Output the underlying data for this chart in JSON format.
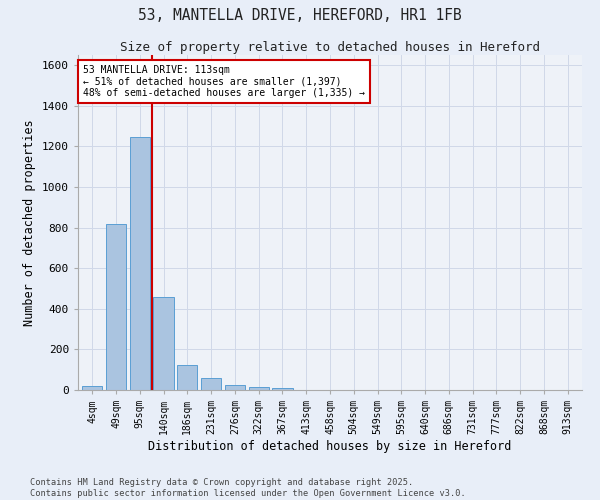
{
  "title1": "53, MANTELLA DRIVE, HEREFORD, HR1 1FB",
  "title2": "Size of property relative to detached houses in Hereford",
  "xlabel": "Distribution of detached houses by size in Hereford",
  "ylabel": "Number of detached properties",
  "categories": [
    "4sqm",
    "49sqm",
    "95sqm",
    "140sqm",
    "186sqm",
    "231sqm",
    "276sqm",
    "322sqm",
    "367sqm",
    "413sqm",
    "458sqm",
    "504sqm",
    "549sqm",
    "595sqm",
    "640sqm",
    "686sqm",
    "731sqm",
    "777sqm",
    "822sqm",
    "868sqm",
    "913sqm"
  ],
  "values": [
    22,
    820,
    1245,
    460,
    125,
    58,
    25,
    15,
    8,
    0,
    0,
    0,
    0,
    0,
    0,
    0,
    0,
    0,
    0,
    0,
    0
  ],
  "bar_color": "#aac4e0",
  "bar_edge_color": "#5a9fd4",
  "vline_x": 2.5,
  "vline_color": "#cc0000",
  "annotation_text": "53 MANTELLA DRIVE: 113sqm\n← 51% of detached houses are smaller (1,397)\n48% of semi-detached houses are larger (1,335) →",
  "annotation_box_color": "#cc0000",
  "annotation_bg_color": "#ffffff",
  "ylim": [
    0,
    1650
  ],
  "yticks": [
    0,
    200,
    400,
    600,
    800,
    1000,
    1200,
    1400,
    1600
  ],
  "grid_color": "#d0d8e8",
  "bg_color": "#e8eef8",
  "plot_bg_color": "#eef2f8",
  "footer1": "Contains HM Land Registry data © Crown copyright and database right 2025.",
  "footer2": "Contains public sector information licensed under the Open Government Licence v3.0."
}
